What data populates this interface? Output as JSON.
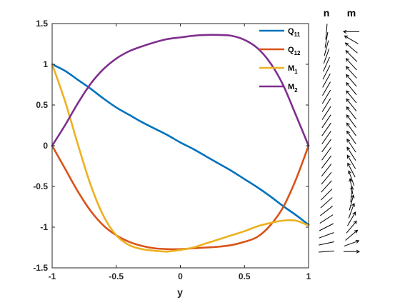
{
  "chart_data": {
    "type": "line",
    "xlabel": "y",
    "ylabel": "",
    "xlim": [
      -1,
      1
    ],
    "ylim": [
      -1.5,
      1.5
    ],
    "xticks": [
      "-1",
      "-0.5",
      "0",
      "0.5",
      "1"
    ],
    "yticks": [
      "1.5",
      "1",
      "0.5",
      "0",
      "-0.5",
      "-1",
      "-1.5"
    ],
    "xtick_values": [
      -1,
      -0.5,
      0,
      0.5,
      1
    ],
    "ytick_values": [
      1.5,
      1,
      0.5,
      0,
      -0.5,
      -1,
      -1.5
    ],
    "grid": false,
    "legend_position": "top-right",
    "series": [
      {
        "name": "Q",
        "subscript": "11",
        "color": "#0072BD",
        "x": [
          -1,
          -0.9,
          -0.8,
          -0.7,
          -0.6,
          -0.5,
          -0.4,
          -0.3,
          -0.2,
          -0.1,
          0,
          0.1,
          0.2,
          0.3,
          0.4,
          0.5,
          0.6,
          0.7,
          0.8,
          0.9,
          1
        ],
        "y": [
          1,
          0.92,
          0.81,
          0.7,
          0.58,
          0.47,
          0.38,
          0.29,
          0.21,
          0.13,
          0.04,
          -0.04,
          -0.13,
          -0.22,
          -0.31,
          -0.41,
          -0.51,
          -0.62,
          -0.74,
          -0.85,
          -0.97
        ]
      },
      {
        "name": "Q",
        "subscript": "12",
        "color": "#D95319",
        "x": [
          -1,
          -0.9,
          -0.8,
          -0.7,
          -0.6,
          -0.5,
          -0.4,
          -0.3,
          -0.2,
          -0.1,
          0,
          0.1,
          0.2,
          0.3,
          0.4,
          0.5,
          0.6,
          0.7,
          0.8,
          0.9,
          1
        ],
        "y": [
          0,
          -0.28,
          -0.56,
          -0.8,
          -0.98,
          -1.1,
          -1.18,
          -1.23,
          -1.26,
          -1.27,
          -1.27,
          -1.26,
          -1.25,
          -1.24,
          -1.22,
          -1.18,
          -1.12,
          -0.98,
          -0.76,
          -0.42,
          0
        ]
      },
      {
        "name": "M",
        "subscript": "1",
        "color": "#EDB120",
        "x": [
          -1,
          -0.9,
          -0.8,
          -0.7,
          -0.6,
          -0.5,
          -0.4,
          -0.3,
          -0.2,
          -0.1,
          0,
          0.1,
          0.2,
          0.3,
          0.4,
          0.5,
          0.6,
          0.7,
          0.8,
          0.9,
          1
        ],
        "y": [
          1,
          0.55,
          0.02,
          -0.48,
          -0.86,
          -1.1,
          -1.22,
          -1.27,
          -1.29,
          -1.3,
          -1.28,
          -1.25,
          -1.2,
          -1.15,
          -1.1,
          -1.05,
          -0.99,
          -0.95,
          -0.92,
          -0.92,
          -0.98
        ]
      },
      {
        "name": "M",
        "subscript": "2",
        "color": "#7E2F8E",
        "x": [
          -1,
          -0.9,
          -0.8,
          -0.7,
          -0.6,
          -0.5,
          -0.4,
          -0.3,
          -0.2,
          -0.1,
          0,
          0.1,
          0.2,
          0.3,
          0.4,
          0.5,
          0.6,
          0.7,
          0.8,
          0.9,
          1
        ],
        "y": [
          0,
          0.25,
          0.52,
          0.76,
          0.94,
          1.07,
          1.16,
          1.22,
          1.27,
          1.31,
          1.33,
          1.35,
          1.36,
          1.36,
          1.35,
          1.3,
          1.2,
          1.02,
          0.75,
          0.38,
          0
        ]
      }
    ],
    "field_columns": [
      {
        "label": "n",
        "color": "#000000",
        "y_values": [
          1.4,
          1.3,
          1.2,
          1.1,
          1.0,
          0.9,
          0.8,
          0.7,
          0.6,
          0.5,
          0.4,
          0.3,
          0.2,
          0.1,
          0.0,
          -0.1,
          -0.2,
          -0.3,
          -0.4,
          -0.5,
          -0.6,
          -0.7,
          -0.8,
          -0.9,
          -1.0,
          -1.1,
          -1.2,
          -1.3
        ],
        "angles_deg": [
          85,
          80,
          75,
          70,
          66,
          63,
          61,
          60,
          59,
          58,
          57,
          56,
          55,
          55,
          54,
          54,
          53,
          52,
          50,
          48,
          45,
          42,
          38,
          33,
          27,
          20,
          12,
          4
        ],
        "arrowheads": false
      },
      {
        "label": "m",
        "color": "#000000",
        "y_values": [
          1.4,
          1.3,
          1.2,
          1.1,
          1.0,
          0.9,
          0.8,
          0.7,
          0.6,
          0.5,
          0.4,
          0.3,
          0.2,
          0.1,
          0.0,
          -0.1,
          -0.2,
          -0.3,
          -0.4,
          -0.5,
          -0.6,
          -0.7,
          -0.8,
          -0.9,
          -1.0,
          -1.1,
          -1.2,
          -1.3
        ],
        "angles_deg": [
          180,
          150,
          140,
          135,
          133,
          132,
          131,
          130,
          130,
          129,
          128,
          127,
          126,
          125,
          124,
          123,
          121,
          118,
          110,
          100,
          85,
          75,
          70,
          60,
          50,
          40,
          20,
          0
        ],
        "arrowheads": true
      }
    ]
  }
}
